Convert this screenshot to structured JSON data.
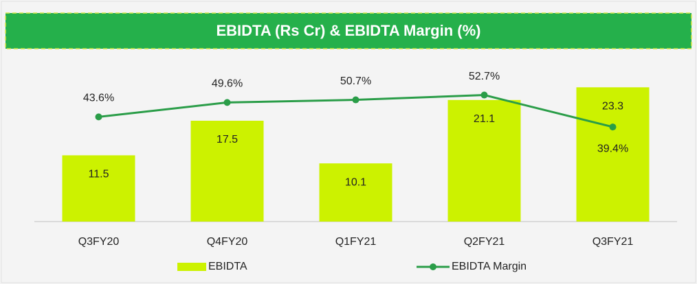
{
  "chart_data": {
    "type": "bar",
    "title": "EBIDTA (Rs Cr) & EBIDTA Margin (%)",
    "categories": [
      "Q3FY20",
      "Q4FY20",
      "Q1FY21",
      "Q2FY21",
      "Q3FY21"
    ],
    "series": [
      {
        "name": "EBIDTA",
        "type": "bar",
        "color": "#ccf200",
        "values": [
          11.5,
          17.5,
          10.1,
          21.1,
          23.3
        ]
      },
      {
        "name": "EBIDTA Margin",
        "type": "line",
        "axis": "y2",
        "color": "#2a9d48",
        "values": [
          43.6,
          49.6,
          50.7,
          52.7,
          39.4
        ],
        "value_labels": [
          "43.6%",
          "49.6%",
          "50.7%",
          "52.7%",
          "39.4%"
        ]
      }
    ],
    "ylim": [
      0,
      30
    ],
    "y2lim": [
      0,
      72
    ],
    "legend": "bottom"
  }
}
